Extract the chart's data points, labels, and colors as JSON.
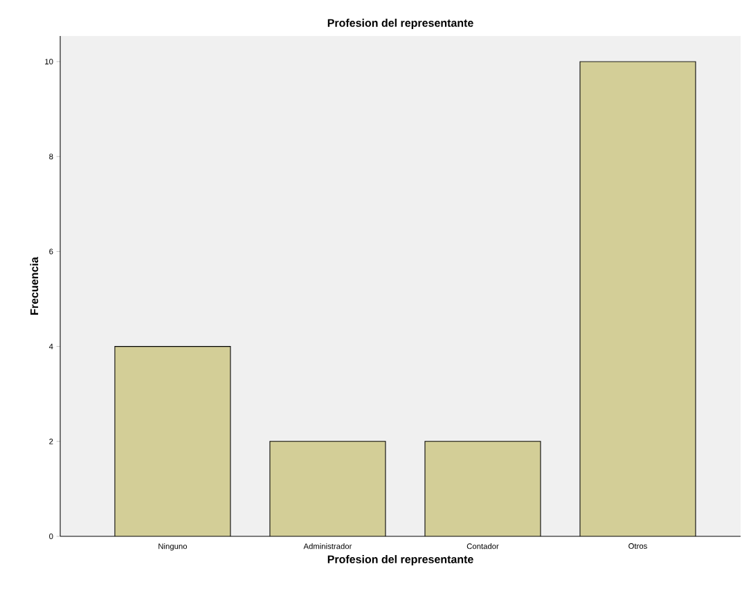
{
  "chart_data": {
    "type": "bar",
    "title": "Profesion del representante",
    "xlabel": "Profesion del representante",
    "ylabel": "Frecuencia",
    "categories": [
      "Ninguno",
      "Administrador",
      "Contador",
      "Otros"
    ],
    "values": [
      4,
      2,
      2,
      10
    ],
    "color": "#d3ce97",
    "ylim": [
      0,
      10.54
    ],
    "yticks": [
      0,
      2,
      4,
      6,
      8,
      10
    ],
    "grid": false
  }
}
